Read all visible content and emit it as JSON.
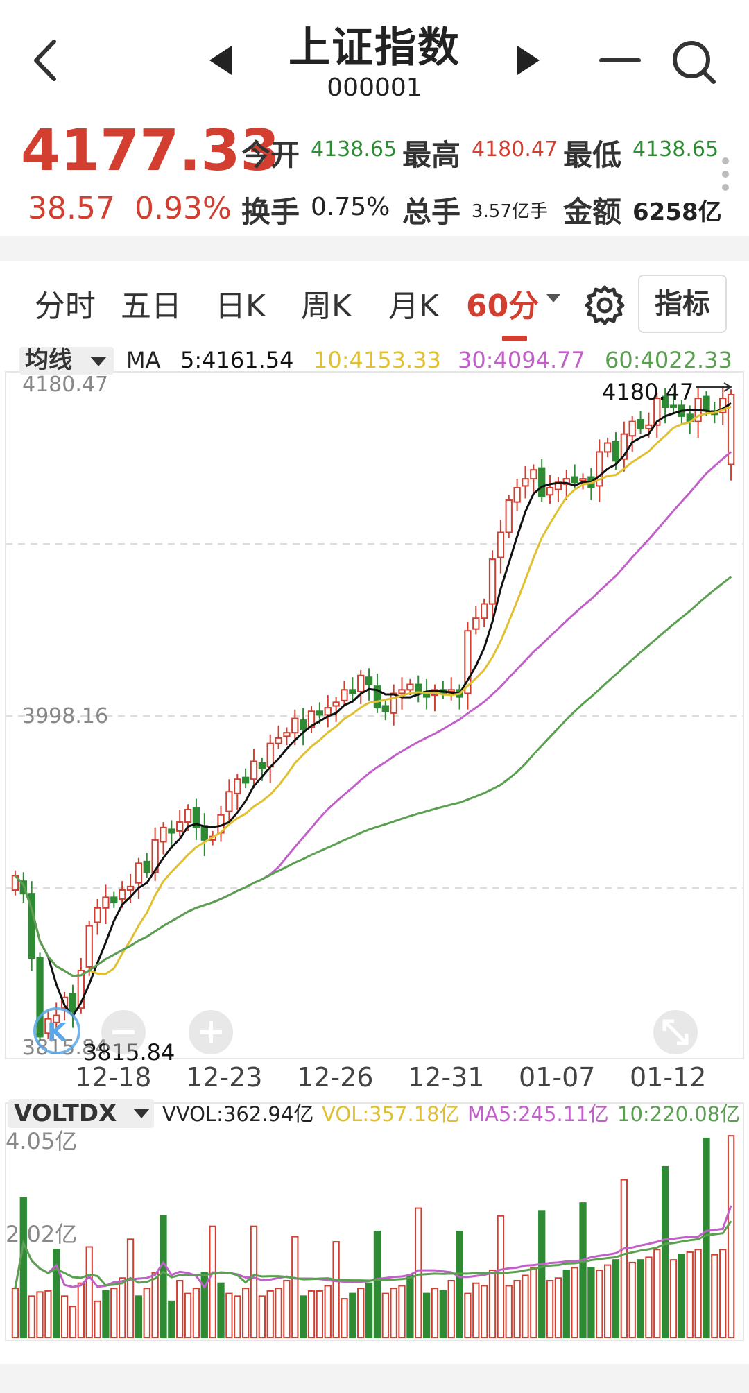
{
  "header": {
    "title": "上证指数",
    "code": "000001",
    "icons": [
      "back-chevron-icon",
      "prev-triangle-icon",
      "next-triangle-icon",
      "minus-icon",
      "search-icon"
    ]
  },
  "quote": {
    "price": "4177.33",
    "change": "38.57",
    "change_pct": "0.93%",
    "open_label": "今开",
    "open": "4138.65",
    "high_label": "最高",
    "high": "4180.47",
    "low_label": "最低",
    "low": "4138.65",
    "turnover_label": "换手",
    "turnover": "0.75%",
    "volume_label": "总手",
    "volume": "3.57亿手",
    "amount_label": "金额",
    "amount": "6258亿"
  },
  "tabs": {
    "items": [
      "分时",
      "五日",
      "日K",
      "周K",
      "月K"
    ],
    "active": "60分",
    "indicator_button": "指标"
  },
  "colors": {
    "up": "#d23f31",
    "down": "#2e8b34",
    "ma5": "#111111",
    "ma10": "#e0c030",
    "ma30": "#c060c8",
    "ma60": "#5aa050"
  },
  "chart_data": [
    {
      "type": "candlestick",
      "legend_label": "均线",
      "ma_label": "MA",
      "ma": [
        {
          "name": "5",
          "value": "4161.54"
        },
        {
          "name": "10",
          "value": "4153.33"
        },
        {
          "name": "30",
          "value": "4094.77"
        },
        {
          "name": "60",
          "value": "4022.33"
        }
      ],
      "y_labels": [
        "4180.47",
        "3998.16",
        "3815.84"
      ],
      "max_label": "4180.47",
      "min_label": "3815.84",
      "x_labels": [
        "12-18",
        "12-23",
        "12-26",
        "12-31",
        "01-07",
        "01-12"
      ],
      "ylim": [
        3815.84,
        4180.47
      ],
      "close": [
        3908,
        3898,
        3862,
        3818,
        3828,
        3830,
        3840,
        3832,
        3855,
        3880,
        3890,
        3896,
        3893,
        3900,
        3902,
        3915,
        3910,
        3928,
        3935,
        3932,
        3938,
        3945,
        3935,
        3928,
        3930,
        3942,
        3955,
        3962,
        3960,
        3972,
        3968,
        3982,
        3985,
        3988,
        3996,
        3990,
        4000,
        3998,
        4002,
        4005,
        4012,
        4010,
        4020,
        4015,
        4002,
        4000,
        4010,
        4012,
        4015,
        4010,
        4008,
        4012,
        4010,
        4012,
        4008,
        4045,
        4052,
        4060,
        4085,
        4100,
        4118,
        4125,
        4130,
        4135,
        4120,
        4125,
        4128,
        4130,
        4128,
        4130,
        4125,
        4145,
        4150,
        4140,
        4155,
        4162,
        4158,
        4160,
        4175,
        4170,
        4170,
        4165,
        4162,
        4175,
        4168,
        4166,
        4175,
        4177
      ],
      "open": [
        3900,
        3905,
        3898,
        3862,
        3820,
        3826,
        3834,
        3842,
        3834,
        3857,
        3882,
        3890,
        3896,
        3895,
        3900,
        3904,
        3916,
        3910,
        3927,
        3934,
        3933,
        3938,
        3946,
        3936,
        3928,
        3932,
        3944,
        3954,
        3963,
        3962,
        3971,
        3969,
        3982,
        3986,
        3988,
        3995,
        3991,
        4000,
        3998,
        4003,
        4006,
        4012,
        4011,
        4019,
        4014,
        4003,
        3999,
        4010,
        4012,
        4015,
        4011,
        4009,
        4012,
        4011,
        4012,
        4010,
        4046,
        4052,
        4060,
        4086,
        4100,
        4117,
        4126,
        4130,
        4136,
        4121,
        4124,
        4127,
        4131,
        4129,
        4131,
        4126,
        4145,
        4151,
        4141,
        4154,
        4163,
        4158,
        4160,
        4176,
        4171,
        4171,
        4166,
        4162,
        4176,
        4168,
        4167,
        4138
      ]
    },
    {
      "type": "bar",
      "indicator_label": "VOLTDX",
      "series_labels": [
        {
          "name": "VVOL",
          "value": "362.94亿"
        },
        {
          "name": "VOL",
          "value": "357.18亿"
        },
        {
          "name": "MA5",
          "value": "245.11亿"
        },
        {
          "name": "10",
          "value": "220.08亿"
        }
      ],
      "y_labels": [
        "4.05亿",
        "2.02亿"
      ],
      "ylim": [
        0,
        4.05
      ],
      "values": [
        0.95,
        2.7,
        0.8,
        0.88,
        0.9,
        1.7,
        0.8,
        0.6,
        1.05,
        1.75,
        0.7,
        0.9,
        0.95,
        1.15,
        1.9,
        0.8,
        0.95,
        1.25,
        2.35,
        0.7,
        1.1,
        0.85,
        0.95,
        1.25,
        2.15,
        1.05,
        0.85,
        0.8,
        0.95,
        2.15,
        0.8,
        0.9,
        0.95,
        1.1,
        1.95,
        0.8,
        0.9,
        0.9,
        1.0,
        1.85,
        0.75,
        0.85,
        0.95,
        1.05,
        2.05,
        0.85,
        0.95,
        1.0,
        1.2,
        2.5,
        0.85,
        0.95,
        0.9,
        1.1,
        2.05,
        0.85,
        1.05,
        1.0,
        1.3,
        2.35,
        1.0,
        1.1,
        1.2,
        1.35,
        2.45,
        1.1,
        1.15,
        1.3,
        1.35,
        2.6,
        1.35,
        1.3,
        1.4,
        1.5,
        3.05,
        1.45,
        1.5,
        1.55,
        1.7,
        3.3,
        1.5,
        1.6,
        1.65,
        1.7,
        3.85,
        1.6,
        1.7,
        3.9
      ],
      "up": [
        true,
        false,
        true,
        true,
        true,
        false,
        true,
        true,
        true,
        true,
        true,
        false,
        true,
        true,
        true,
        false,
        true,
        true,
        false,
        false,
        true,
        true,
        true,
        false,
        true,
        false,
        true,
        true,
        true,
        true,
        true,
        true,
        true,
        true,
        true,
        false,
        true,
        true,
        true,
        true,
        true,
        false,
        true,
        false,
        false,
        true,
        true,
        true,
        false,
        true,
        false,
        true,
        false,
        true,
        false,
        true,
        true,
        true,
        true,
        true,
        true,
        true,
        true,
        true,
        false,
        true,
        true,
        false,
        true,
        false,
        false,
        true,
        true,
        false,
        true,
        true,
        false,
        true,
        true,
        false,
        true,
        false,
        true,
        true,
        false,
        true,
        true,
        true
      ]
    }
  ]
}
